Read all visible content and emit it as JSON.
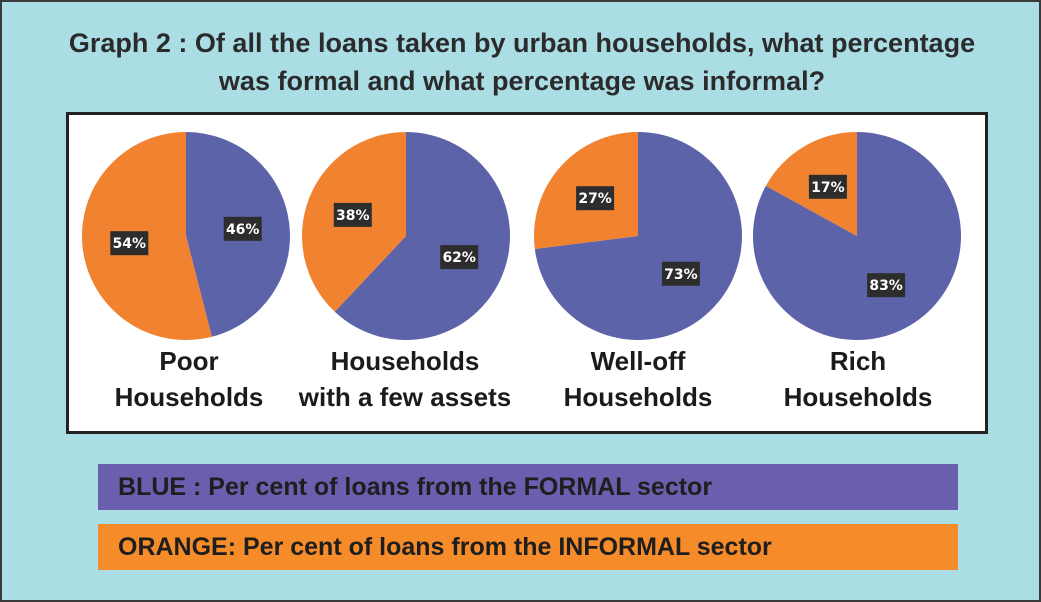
{
  "colors": {
    "background": "#abdde5",
    "formal": "#5d63a8",
    "informal": "#f08230",
    "label_box": "#2d2d2d",
    "legend_blue": "#6a5fae",
    "legend_orange": "#f68b2a"
  },
  "chart_data": {
    "type": "pie",
    "title": "Graph 2 : Of all the loans taken by urban households, what percentage was formal and what percentage was informal?",
    "series_names": [
      "FORMAL",
      "INFORMAL"
    ],
    "categories": [
      "Poor\nHouseholds",
      "Households\nwith a few assets",
      "Well-off\nHouseholds",
      "Rich\nHouseholds"
    ],
    "pies": [
      {
        "category": "Poor\nHouseholds",
        "formal": 46,
        "informal": 54,
        "formal_label": "46%",
        "informal_label": "54%"
      },
      {
        "category": "Households\nwith a few assets",
        "formal": 62,
        "informal": 38,
        "formal_label": "62%",
        "informal_label": "38%"
      },
      {
        "category": "Well-off\nHouseholds",
        "formal": 73,
        "informal": 27,
        "formal_label": "73%",
        "informal_label": "27%"
      },
      {
        "category": "Rich\nHouseholds",
        "formal": 83,
        "informal": 17,
        "formal_label": "83%",
        "informal_label": "17%"
      }
    ],
    "legend": {
      "blue": "BLUE : Per cent of loans from the FORMAL sector",
      "orange": "ORANGE: Per cent of loans from the INFORMAL sector"
    }
  }
}
